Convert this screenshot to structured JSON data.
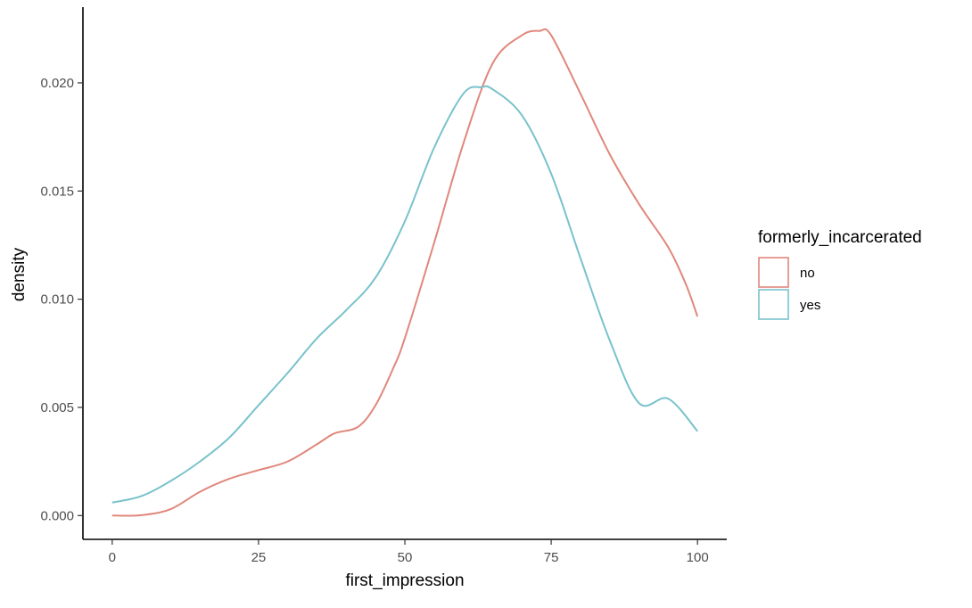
{
  "chart_data": {
    "type": "line",
    "xlabel": "first_impression",
    "ylabel": "density",
    "xlim": [
      -5,
      105
    ],
    "ylim": [
      -0.0011,
      0.0235
    ],
    "x_ticks": [
      0,
      25,
      50,
      75,
      100
    ],
    "x_tick_labels": [
      "0",
      "25",
      "50",
      "75",
      "100"
    ],
    "y_ticks": [
      0.0,
      0.005,
      0.01,
      0.015,
      0.02
    ],
    "y_tick_labels": [
      "0.000",
      "0.005",
      "0.010",
      "0.015",
      "0.020"
    ],
    "grid": false,
    "legend": {
      "title": "formerly_incarcerated",
      "position": "right"
    },
    "series": [
      {
        "name": "no",
        "color": "#E0877C",
        "x": [
          0,
          5,
          10,
          15,
          20,
          25,
          30,
          35,
          38,
          42,
          45,
          48,
          50,
          55,
          60,
          65,
          70,
          73,
          75,
          80,
          85,
          90,
          95,
          98,
          100
        ],
        "y": [
          0.0,
          2e-05,
          0.0003,
          0.0011,
          0.0017,
          0.0021,
          0.0025,
          0.0033,
          0.0038,
          0.0041,
          0.0051,
          0.0068,
          0.0082,
          0.0126,
          0.0172,
          0.0209,
          0.0222,
          0.0224,
          0.0222,
          0.0195,
          0.0167,
          0.0144,
          0.0124,
          0.0107,
          0.0092
        ]
      },
      {
        "name": "yes",
        "color": "#79C2CB",
        "x": [
          0,
          5,
          10,
          15,
          20,
          25,
          30,
          35,
          40,
          45,
          50,
          55,
          60,
          63,
          65,
          70,
          75,
          80,
          85,
          90,
          95,
          100
        ],
        "y": [
          0.0006,
          0.0009,
          0.0016,
          0.0025,
          0.0036,
          0.0051,
          0.0066,
          0.0082,
          0.0095,
          0.011,
          0.0136,
          0.017,
          0.0195,
          0.0198,
          0.0197,
          0.0185,
          0.0158,
          0.0119,
          0.0081,
          0.0052,
          0.0054,
          0.0039
        ]
      }
    ]
  }
}
